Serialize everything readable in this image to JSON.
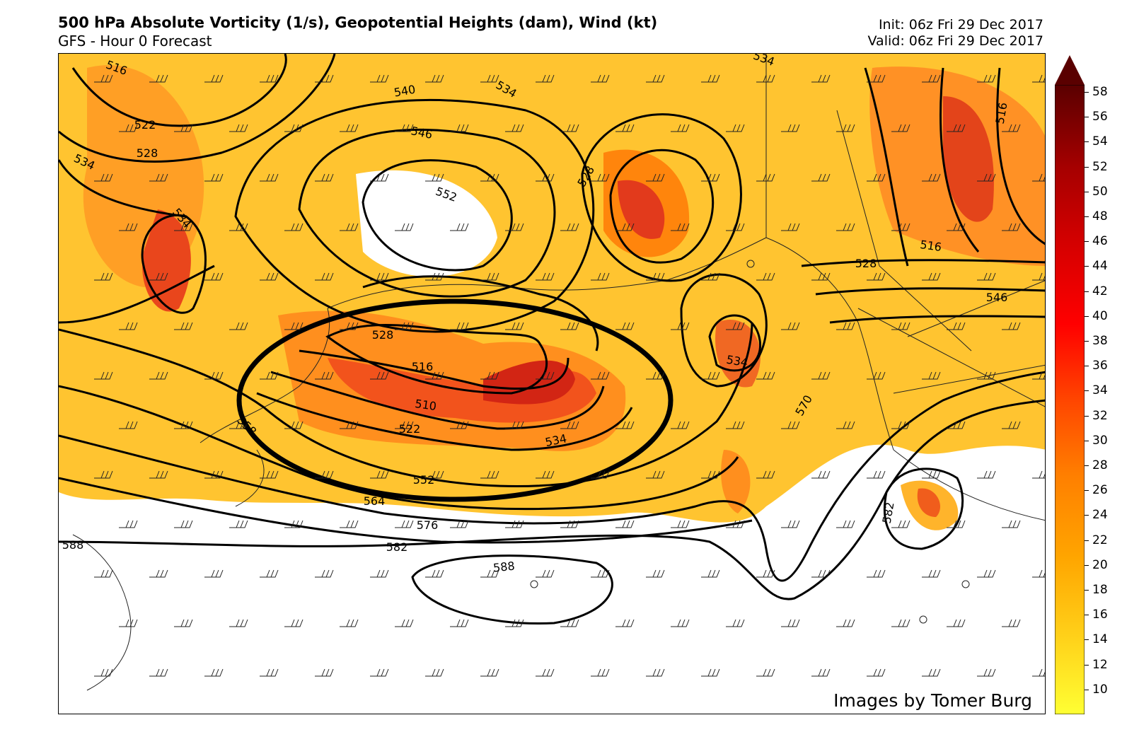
{
  "header": {
    "title": "500 hPa Absolute Vorticity (1/s),  Geopotential Heights (dam),  Wind (kt)",
    "subtitle": "GFS - Hour 0 Forecast",
    "init": "Init: 06z Fri 29 Dec 2017",
    "valid": "Valid: 06z Fri 29 Dec 2017"
  },
  "credit": "Images by Tomer Burg",
  "colorbar": {
    "ticks": [
      "58",
      "56",
      "54",
      "52",
      "50",
      "48",
      "46",
      "44",
      "42",
      "40",
      "38",
      "36",
      "34",
      "32",
      "30",
      "28",
      "26",
      "24",
      "22",
      "20",
      "18",
      "16",
      "14",
      "12",
      "10"
    ],
    "colors": [
      "#ffff33",
      "#ffd21a",
      "#ffa500",
      "#ff7f00",
      "#ff4500",
      "#ff0000",
      "#d40000",
      "#a50000",
      "#7f0000",
      "#5a0000"
    ]
  },
  "contour_labels": [
    {
      "text": "516"
    },
    {
      "text": "522"
    },
    {
      "text": "528"
    },
    {
      "text": "534"
    },
    {
      "text": "534"
    },
    {
      "text": "540"
    },
    {
      "text": "546"
    },
    {
      "text": "552"
    },
    {
      "text": "534"
    },
    {
      "text": "528"
    },
    {
      "text": "534"
    },
    {
      "text": "516"
    },
    {
      "text": "528"
    },
    {
      "text": "546"
    },
    {
      "text": "528"
    },
    {
      "text": "516"
    },
    {
      "text": "510"
    },
    {
      "text": "522"
    },
    {
      "text": "534"
    },
    {
      "text": "552"
    },
    {
      "text": "564"
    },
    {
      "text": "576"
    },
    {
      "text": "582"
    },
    {
      "text": "588"
    },
    {
      "text": "588"
    },
    {
      "text": "534"
    },
    {
      "text": "570"
    },
    {
      "text": "582"
    },
    {
      "text": "558"
    },
    {
      "text": "516"
    }
  ]
}
